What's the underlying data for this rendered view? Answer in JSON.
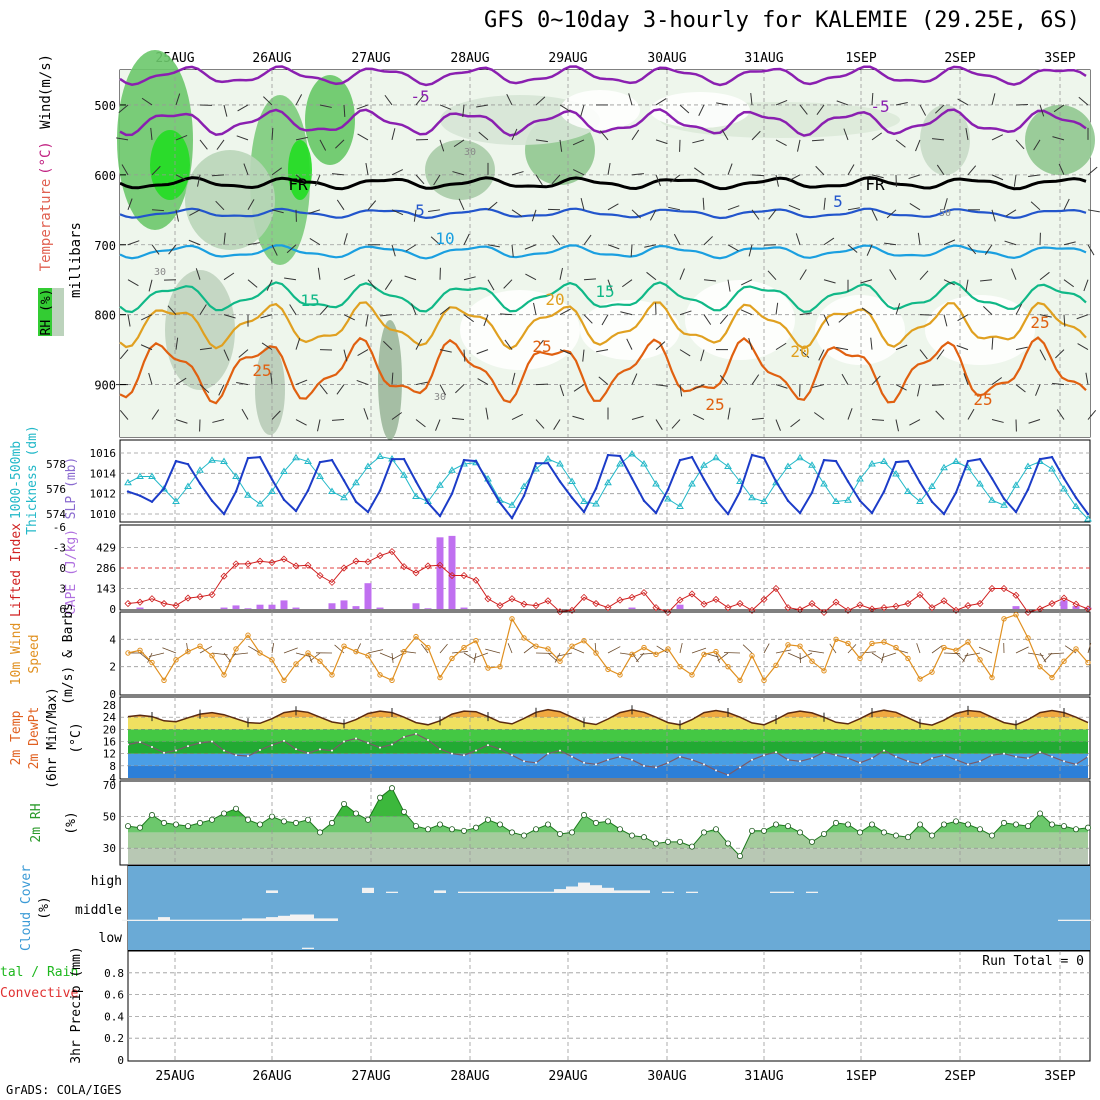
{
  "title": "GFS 0~10day 3-hourly for KALEMIE (29.25E, 6S)",
  "footer": "GrADS: COLA/IGES",
  "colors": {
    "purple_contour": "#8a1fb0",
    "frz_line": "#000000",
    "blue5": "#2255cc",
    "cyan10": "#1a9fe0",
    "green15": "#10b887",
    "orange20": "#e0a020",
    "orange25": "#e06010",
    "slp": "#1c3cc8",
    "thickness": "#22b8c8",
    "cape": "#c070f0",
    "lifted_index": "#d02020",
    "wind10m": "#e09020",
    "rh": "#3cb83c",
    "cloud_bg": "#6aaad6"
  },
  "chart_data": [
    {
      "panel": "upper-air",
      "type": "heatmap",
      "y_tick_labels": [
        "500",
        "600",
        "700",
        "800",
        "900"
      ],
      "ylim": [
        450,
        975
      ],
      "y_units": "millibars",
      "title_parts": [
        "RH (%)",
        "Temperature",
        "(°C)",
        "Wind",
        "(m/s)"
      ],
      "contour_labels": [
        "-5",
        "-5",
        "FR",
        "FR",
        "5",
        "5",
        "10",
        "15",
        "15",
        "20",
        "20",
        "25",
        "25",
        "25",
        "25",
        "25",
        "30",
        "30",
        "30",
        "50"
      ],
      "x_tick_labels": [
        "25AUG",
        "26AUG",
        "27AUG",
        "28AUG",
        "29AUG",
        "30AUG",
        "31AUG",
        "1SEP",
        "2SEP",
        "3SEP"
      ]
    },
    {
      "panel": "slp-thickness",
      "type": "line",
      "left_label": "1000-500mb Thickness (dm)",
      "right_label": "SLP (mb)",
      "left_ticks": [
        "578",
        "576",
        "574"
      ],
      "right_ticks": [
        "1016",
        "1014",
        "1012",
        "1010"
      ],
      "series": [
        {
          "name": "SLP",
          "values": [
            1012.2,
            1011.8,
            1011.2,
            1012.5,
            1015.2,
            1014.9,
            1013.0,
            1011.3,
            1010.0,
            1012.2,
            1015.5,
            1015.6,
            1013.4,
            1011.4,
            1010.3,
            1012.3,
            1015.1,
            1015.3,
            1013.3,
            1011.2,
            1010.2,
            1012.3,
            1015.4,
            1015.4,
            1013.2,
            1011.1,
            1009.8,
            1012.0,
            1015.3,
            1015.2,
            1013.1,
            1011.1,
            1009.6,
            1011.8,
            1015.0,
            1015.0,
            1013.2,
            1011.6,
            1010.2,
            1012.5,
            1015.8,
            1015.7,
            1013.5,
            1011.3,
            1010.1,
            1012.4,
            1015.3,
            1015.6,
            1013.4,
            1011.4,
            1010.0,
            1012.2,
            1015.8,
            1015.5,
            1013.2,
            1011.3,
            1010.1,
            1012.1,
            1015.3,
            1015.2,
            1013.2,
            1011.3,
            1010.1,
            1012.2,
            1015.1,
            1015.2,
            1013.1,
            1011.2,
            1010.0,
            1012.1,
            1015.2,
            1015.4,
            1013.5,
            1011.5,
            1010.2,
            1012.4,
            1015.4,
            1015.6,
            1013.5,
            1011.6,
            1010.0
          ]
        },
        {
          "name": "Thickness",
          "values": [
            576.5,
            577.0,
            577.0,
            576.0,
            575.0,
            576.2,
            577.5,
            578.3,
            578.2,
            577.0,
            575.5,
            574.8,
            575.8,
            577.4,
            578.5,
            578.2,
            577.0,
            575.8,
            575.3,
            576.5,
            577.8,
            578.6,
            578.4,
            577.1,
            575.4,
            575.0,
            576.3,
            577.5,
            578.0,
            578.1,
            576.8,
            575.1,
            574.7,
            576.2,
            577.6,
            578.4,
            578.0,
            576.6,
            575.0,
            574.8,
            576.5,
            578.0,
            578.8,
            578.0,
            576.4,
            575.2,
            574.6,
            576.4,
            577.9,
            578.5,
            577.8,
            576.6,
            575.3,
            575.0,
            576.5,
            577.8,
            578.5,
            577.9,
            576.4,
            575.0,
            575.1,
            576.8,
            578.0,
            578.2,
            577.2,
            575.8,
            575.0,
            576.2,
            577.7,
            578.2,
            577.7,
            576.4,
            575.1,
            574.7,
            576.3,
            577.8,
            578.2,
            577.6,
            576.0,
            574.6,
            573.6
          ]
        }
      ]
    },
    {
      "panel": "cape-li",
      "type": "bar",
      "left_label": "Lifted Index",
      "right_label": "CAPE (J/kg)",
      "left_ticks": [
        "-6",
        "-3",
        "0",
        "3",
        "6"
      ],
      "right_ticks": [
        "429",
        "286",
        "143",
        "0"
      ],
      "series": [
        {
          "name": "CAPE",
          "values": [
            0,
            10,
            0,
            0,
            0,
            0,
            0,
            0,
            10,
            25,
            5,
            30,
            30,
            60,
            10,
            0,
            0,
            40,
            60,
            20,
            180,
            10,
            0,
            0,
            40,
            5,
            500,
            510,
            10,
            0,
            0,
            0,
            0,
            0,
            0,
            0,
            0,
            0,
            0,
            0,
            0,
            0,
            10,
            0,
            0,
            0,
            30,
            0,
            0,
            0,
            0,
            0,
            0,
            0,
            0,
            0,
            0,
            0,
            0,
            0,
            0,
            0,
            0,
            0,
            0,
            0,
            0,
            0,
            0,
            0,
            0,
            0,
            0,
            0,
            20,
            0,
            0,
            0,
            60,
            20,
            10
          ]
        },
        {
          "name": "Lifted Index",
          "values": [
            5.2,
            5.0,
            4.5,
            5.2,
            5.5,
            4.4,
            4.2,
            3.9,
            1.2,
            -0.6,
            -0.6,
            -1.0,
            -0.8,
            -1.3,
            -0.3,
            -0.4,
            1.1,
            2.1,
            0.0,
            -1.0,
            -0.9,
            -1.8,
            -2.4,
            -0.2,
            0.7,
            -0.3,
            -0.4,
            1.1,
            1.1,
            1.8,
            4.5,
            5.5,
            4.5,
            5.3,
            5.5,
            4.8,
            6.4,
            6.2,
            4.3,
            5.2,
            5.8,
            4.7,
            4.3,
            3.6,
            5.8,
            6.5,
            4.7,
            3.8,
            5.3,
            4.6,
            5.8,
            5.2,
            6.2,
            4.6,
            3.0,
            5.8,
            6.1,
            5.2,
            6.5,
            5.0,
            6.2,
            5.4,
            6.0,
            5.8,
            5.6,
            5.2,
            3.9,
            5.8,
            4.8,
            6.2,
            5.5,
            5.2,
            3.0,
            3.0,
            4.0,
            6.5,
            6.0,
            5.2,
            4.4,
            5.3,
            6.0
          ]
        }
      ]
    },
    {
      "panel": "wind10m",
      "type": "line",
      "left_label": "10m Wind Speed (m/s) & Barbs",
      "left_ticks": [
        "4",
        "2",
        "0"
      ],
      "series": [
        {
          "name": "10m Wind Speed",
          "values": [
            3.0,
            3.2,
            2.3,
            1.0,
            2.5,
            3.1,
            3.5,
            2.8,
            1.4,
            3.3,
            4.3,
            3.0,
            2.5,
            1.0,
            2.2,
            3.0,
            2.4,
            1.4,
            3.5,
            3.1,
            2.8,
            1.4,
            1.0,
            3.1,
            4.2,
            3.4,
            1.2,
            2.6,
            3.4,
            3.9,
            1.9,
            2.0,
            5.5,
            4.1,
            3.5,
            3.3,
            2.4,
            3.5,
            3.9,
            3.0,
            1.8,
            1.4,
            2.9,
            3.4,
            2.9,
            3.3,
            2.0,
            1.4,
            2.9,
            3.1,
            2.0,
            1.0,
            2.8,
            1.0,
            2.1,
            3.6,
            3.5,
            2.4,
            1.7,
            4.0,
            3.7,
            2.6,
            3.7,
            3.8,
            3.4,
            2.6,
            1.1,
            1.6,
            3.4,
            3.2,
            3.8,
            2.5,
            1.2,
            5.5,
            5.8,
            4.1,
            2.0,
            1.2,
            2.4,
            3.3,
            2.3
          ]
        }
      ]
    },
    {
      "panel": "temp2m",
      "type": "area",
      "left_label": "2m Temp 2m DewPt (6hr Min/Max) (°C)",
      "left_ticks": [
        "28",
        "24",
        "20",
        "16",
        "12",
        "8",
        "4"
      ],
      "series": [
        {
          "name": "2m Temp",
          "values": [
            24.2,
            24.6,
            24.2,
            22.8,
            22.5,
            23.8,
            25.0,
            25.5,
            24.8,
            23.5,
            22.2,
            22.0,
            23.5,
            25.5,
            26.1,
            25.6,
            24.0,
            22.4,
            21.8,
            23.2,
            25.2,
            26.0,
            25.5,
            24.0,
            22.2,
            21.5,
            22.8,
            25.0,
            26.0,
            25.8,
            24.2,
            22.4,
            21.8,
            23.6,
            25.6,
            26.5,
            25.8,
            24.0,
            22.2,
            21.6,
            23.4,
            25.5,
            26.4,
            25.6,
            24.0,
            22.2,
            21.5,
            23.2,
            25.5,
            26.2,
            25.5,
            24.0,
            22.1,
            21.5,
            23.2,
            25.3,
            26.0,
            25.4,
            24.0,
            22.3,
            21.8,
            23.5,
            25.5,
            26.3,
            25.6,
            23.8,
            22.0,
            21.4,
            23.0,
            25.2,
            26.2,
            25.8,
            24.0,
            22.2,
            21.5,
            23.2,
            25.5,
            26.2,
            25.5,
            24.0,
            22.2
          ]
        },
        {
          "name": "2m DewPt",
          "values": [
            15.0,
            15.8,
            14.2,
            12.3,
            13.0,
            14.5,
            15.5,
            16.0,
            13.0,
            11.5,
            11.2,
            13.2,
            14.8,
            16.2,
            13.5,
            12.2,
            13.4,
            13.0,
            16.0,
            17.0,
            15.5,
            14.0,
            15.0,
            17.5,
            18.5,
            16.5,
            13.5,
            12.0,
            11.5,
            13.0,
            14.8,
            13.5,
            11.5,
            9.5,
            9.0,
            12.0,
            13.0,
            11.0,
            9.0,
            8.5,
            10.0,
            11.0,
            10.0,
            8.0,
            7.5,
            9.0,
            11.0,
            10.0,
            8.5,
            6.5,
            5.0,
            7.5,
            10.0,
            11.5,
            12.5,
            10.0,
            9.5,
            10.5,
            12.5,
            11.5,
            10.5,
            9.0,
            10.5,
            13.0,
            11.0,
            9.5,
            8.5,
            10.5,
            11.5,
            10.0,
            8.5,
            9.5,
            11.5,
            12.0,
            11.0,
            10.5,
            12.5,
            11.0,
            9.5,
            8.5,
            11.0
          ]
        }
      ]
    },
    {
      "panel": "rh2m",
      "type": "area",
      "left_label": "2m RH (%)",
      "left_ticks": [
        "70",
        "50",
        "30"
      ],
      "series": [
        {
          "name": "2m RH",
          "values": [
            44,
            43,
            51,
            46,
            45,
            44,
            46,
            48,
            52,
            55,
            48,
            45,
            50,
            47,
            46,
            48,
            40,
            46,
            58,
            52,
            48,
            62,
            68,
            53,
            44,
            42,
            45,
            42,
            41,
            43,
            48,
            45,
            40,
            38,
            42,
            45,
            39,
            40,
            51,
            46,
            47,
            42,
            38,
            37,
            33,
            34,
            34,
            31,
            40,
            42,
            33,
            25,
            41,
            41,
            45,
            44,
            40,
            34,
            39,
            46,
            45,
            40,
            45,
            40,
            38,
            37,
            45,
            38,
            45,
            47,
            45,
            42,
            38,
            46,
            45,
            44,
            52,
            45,
            44,
            42,
            43
          ]
        }
      ]
    },
    {
      "panel": "cloud",
      "type": "heatmap",
      "left_label": "Cloud Cover (%)",
      "row_labels": [
        "high",
        "middle",
        "low"
      ],
      "series": [
        {
          "name": "high",
          "values": [
            0,
            0,
            0,
            0,
            0,
            0,
            0,
            0,
            0,
            0,
            0,
            0,
            10,
            0,
            0,
            0,
            0,
            0,
            0,
            0,
            20,
            0,
            5,
            0,
            0,
            0,
            10,
            0,
            5,
            5,
            5,
            5,
            5,
            5,
            5,
            5,
            15,
            25,
            40,
            30,
            20,
            10,
            10,
            10,
            0,
            5,
            0,
            5,
            0,
            0,
            0,
            0,
            0,
            0,
            5,
            5,
            0,
            5,
            0,
            0,
            0,
            0,
            0,
            0,
            0,
            0,
            0,
            0,
            0,
            0,
            0,
            0,
            0,
            0,
            0,
            0,
            0,
            0,
            0,
            0,
            0
          ]
        },
        {
          "name": "middle",
          "values": [
            5,
            5,
            5,
            15,
            5,
            5,
            5,
            5,
            5,
            5,
            10,
            10,
            15,
            20,
            25,
            25,
            10,
            10,
            0,
            0,
            0,
            0,
            0,
            0,
            0,
            0,
            0,
            0,
            0,
            0,
            0,
            0,
            0,
            0,
            0,
            0,
            0,
            0,
            0,
            0,
            0,
            0,
            0,
            0,
            0,
            0,
            0,
            0,
            0,
            0,
            0,
            0,
            0,
            0,
            0,
            0,
            0,
            0,
            0,
            0,
            0,
            0,
            0,
            0,
            0,
            0,
            0,
            0,
            0,
            0,
            0,
            0,
            0,
            0,
            0,
            0,
            0,
            0,
            5,
            5,
            5
          ]
        },
        {
          "name": "low",
          "values": [
            0,
            0,
            0,
            0,
            0,
            0,
            0,
            0,
            0,
            0,
            0,
            0,
            0,
            0,
            0,
            5,
            0,
            0,
            0,
            0,
            0,
            0,
            0,
            0,
            0,
            0,
            0,
            0,
            0,
            0,
            0,
            0,
            0,
            0,
            0,
            0,
            0,
            0,
            0,
            0,
            0,
            0,
            0,
            0,
            0,
            0,
            0,
            0,
            0,
            0,
            0,
            0,
            0,
            0,
            0,
            0,
            0,
            0,
            0,
            0,
            0,
            0,
            0,
            0,
            0,
            0,
            0,
            0,
            0,
            0,
            0,
            0,
            0,
            0,
            0,
            0,
            0,
            0,
            0,
            0,
            0
          ]
        }
      ]
    },
    {
      "panel": "precip",
      "type": "bar",
      "left_label": "3hr Precip (mm)",
      "legend_left": [
        "tal / Rain",
        "Convective"
      ],
      "run_total": "Run Total = 0",
      "left_ticks": [
        "0.8",
        "0.6",
        "0.4",
        "0.2",
        "0"
      ],
      "ylim": [
        0,
        1
      ],
      "series": [
        {
          "name": "3hr Precip",
          "values": [
            0,
            0,
            0,
            0,
            0,
            0,
            0,
            0,
            0,
            0
          ]
        }
      ]
    }
  ]
}
